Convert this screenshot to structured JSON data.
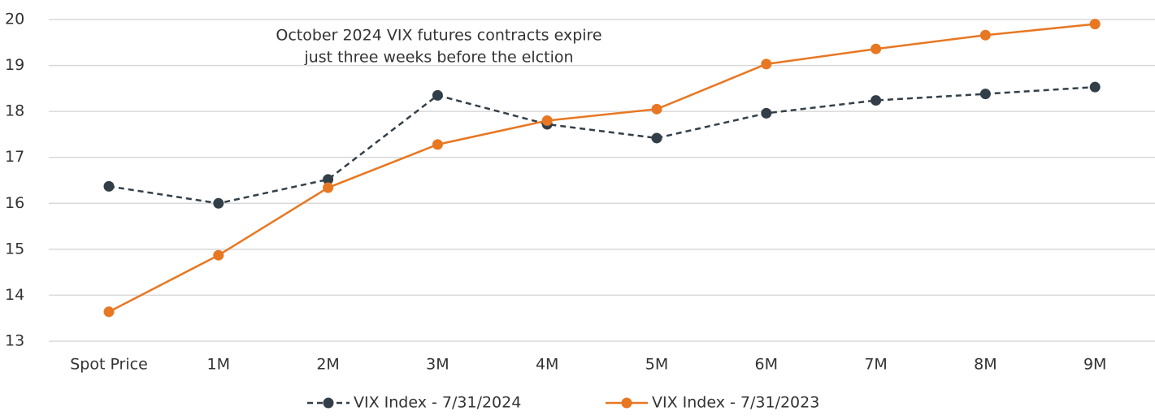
{
  "chart_data": {
    "type": "line",
    "annotation": [
      "October 2024 VIX futures contracts expire",
      "just three weeks before the elction"
    ],
    "categories": [
      "Spot Price",
      "1M",
      "2M",
      "3M",
      "4M",
      "5M",
      "6M",
      "7M",
      "8M",
      "9M"
    ],
    "series": [
      {
        "name": "VIX Index - 7/31/2024",
        "color": "#333f48",
        "dashed": true,
        "values": [
          16.37,
          16.0,
          16.52,
          18.35,
          17.72,
          17.42,
          17.96,
          18.24,
          18.38,
          18.53
        ]
      },
      {
        "name": "VIX Index - 7/31/2023",
        "color": "#e87722",
        "dashed": false,
        "values": [
          13.64,
          14.87,
          16.34,
          17.28,
          17.8,
          18.05,
          19.03,
          19.36,
          19.66,
          19.9
        ]
      }
    ],
    "ylim": [
      13,
      20
    ],
    "yticks": [
      13,
      14,
      15,
      16,
      17,
      18,
      19,
      20
    ],
    "grid": true,
    "legend": "bottom"
  }
}
